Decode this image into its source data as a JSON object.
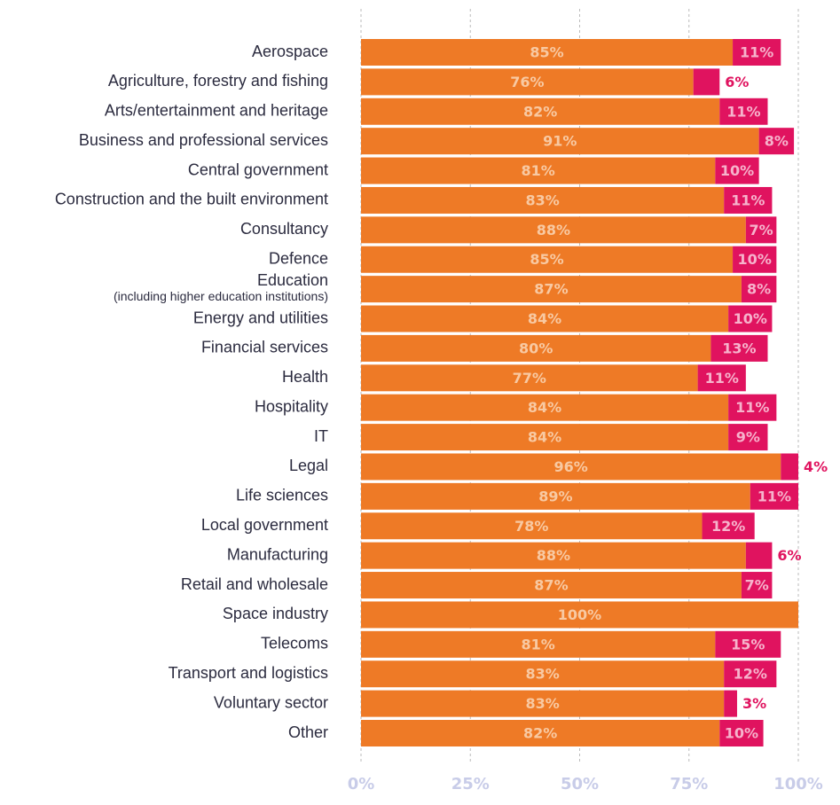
{
  "chart_data": {
    "type": "stacked-bar-horizontal",
    "categories": [
      "Aerospace",
      "Agriculture, forestry and fishing",
      "Arts/entertainment and heritage",
      "Business and professional services",
      "Central government",
      "Construction and the built environment",
      "Consultancy",
      "Defence",
      "Education",
      "Energy and utilities",
      "Financial services",
      "Health",
      "Hospitality",
      "IT",
      "Legal",
      "Life sciences",
      "Local government",
      "Manufacturing",
      "Retail and wholesale",
      "Space industry",
      "Telecoms",
      "Transport and logistics",
      "Voluntary sector",
      "Other"
    ],
    "category_notes": {
      "8": "(including higher education institutions)"
    },
    "series": [
      {
        "color": "#ee7a26",
        "values": [
          85,
          76,
          82,
          91,
          81,
          83,
          88,
          85,
          87,
          84,
          80,
          77,
          84,
          84,
          96,
          89,
          78,
          88,
          87,
          100,
          81,
          83,
          83,
          82
        ],
        "value_labels": [
          "85%",
          "76%",
          "82%",
          "91%",
          "81%",
          "83%",
          "88%",
          "85%",
          "87%",
          "84%",
          "80%",
          "77%",
          "84%",
          "84%",
          "96%",
          "89%",
          "78%",
          "88%",
          "87%",
          "100%",
          "81%",
          "83%",
          "83%",
          "82%"
        ]
      },
      {
        "color": "#e0135f",
        "values": [
          11,
          6,
          11,
          8,
          10,
          11,
          7,
          10,
          8,
          10,
          13,
          11,
          11,
          9,
          4,
          11,
          12,
          6,
          7,
          null,
          15,
          12,
          3,
          10
        ],
        "value_labels": [
          "11%",
          "6%",
          "11%",
          "8%",
          "10%",
          "11%",
          "7%",
          "10%",
          "8%",
          "10%",
          "13%",
          "11%",
          "11%",
          "9%",
          "4%",
          "11%",
          "12%",
          "6%",
          "7%",
          null,
          "15%",
          "12%",
          "3%",
          "10%"
        ]
      }
    ],
    "xlim": [
      0,
      100
    ],
    "xticks": [
      {
        "value": 0,
        "label": "0%"
      },
      {
        "value": 25,
        "label": "25%"
      },
      {
        "value": 50,
        "label": "50%"
      },
      {
        "value": 75,
        "label": "75%"
      },
      {
        "value": 100,
        "label": "100%"
      }
    ],
    "grid": true
  }
}
